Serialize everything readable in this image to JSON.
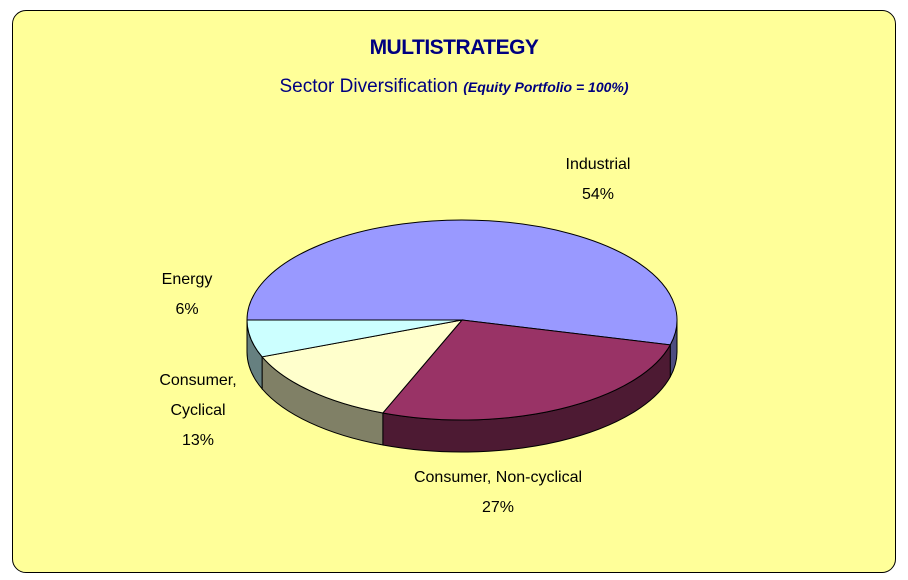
{
  "chart_data": {
    "type": "pie3d",
    "title": "MULTISTRATEGY",
    "subtitle": "Sector Diversification",
    "subtitle_note": "(Equity Portfolio = 100%)",
    "categories": [
      "Industrial",
      "Consumer, Non-cyclical",
      "Consumer, Cyclical",
      "Energy"
    ],
    "values": [
      54,
      27,
      13,
      6
    ],
    "value_labels": [
      "54%",
      "27%",
      "13%",
      "6%"
    ],
    "colors": [
      "#9999ff",
      "#993366",
      "#ffffcc",
      "#ccffff"
    ]
  }
}
